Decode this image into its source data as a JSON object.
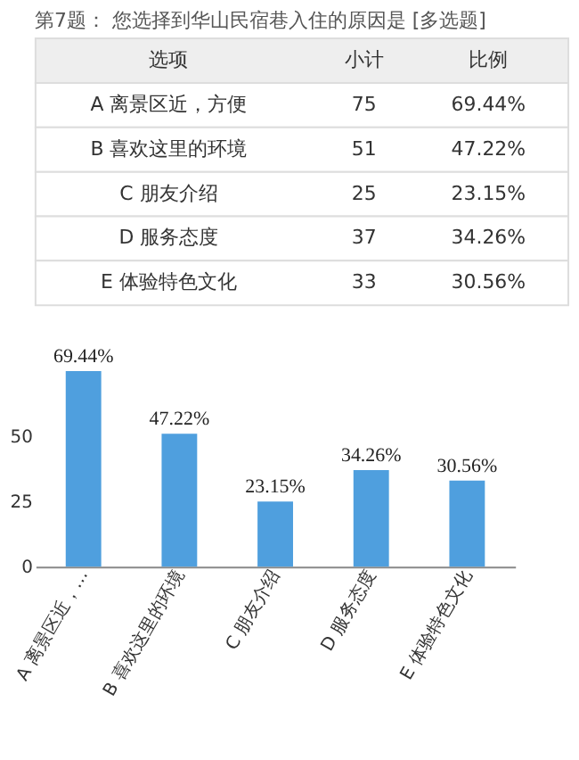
{
  "chart_data": [
    {
      "type": "other",
      "title": "第7题：  您选择到华山民宿巷入住的原因是  [多选题]",
      "annotations": [
        "选项",
        "小计",
        "比例",
        "69.44%",
        "47.22%",
        "23.15%",
        "34.26%",
        "30.56%"
      ],
      "categories": [
        "A 离景区近，方便",
        "B 喜欢这里的环境",
        "C 朋友介绍",
        "D 服务态度",
        "E 体验特色文化"
      ],
      "values": [
        75,
        51,
        25,
        37,
        33
      ],
      "data_labels": true
    },
    {
      "type": "bar",
      "categories": [
        "A 离景区近，…",
        "B 喜欢这里的环境",
        "C 朋友介绍",
        "D 服务态度",
        "E 体验特色文化"
      ],
      "values": [
        75,
        51,
        25,
        37,
        33
      ],
      "color": "#4f9fde",
      "annotations": [
        {
          "text": "69.44%",
          "x": "A 离景区近，…",
          "y": 75
        },
        {
          "text": "47.22%",
          "x": "B 喜欢这里的环境",
          "y": 51
        },
        {
          "text": "23.15%",
          "x": "C 朋友介绍",
          "y": 25
        },
        {
          "text": "34.26%",
          "x": "D 服务态度",
          "y": 37
        },
        {
          "text": "30.56%",
          "x": "E 体验特色文化",
          "y": 33
        }
      ],
      "ylim": [
        0,
        75
      ],
      "yticks": [
        0,
        25,
        50
      ],
      "grid": false
    }
  ]
}
